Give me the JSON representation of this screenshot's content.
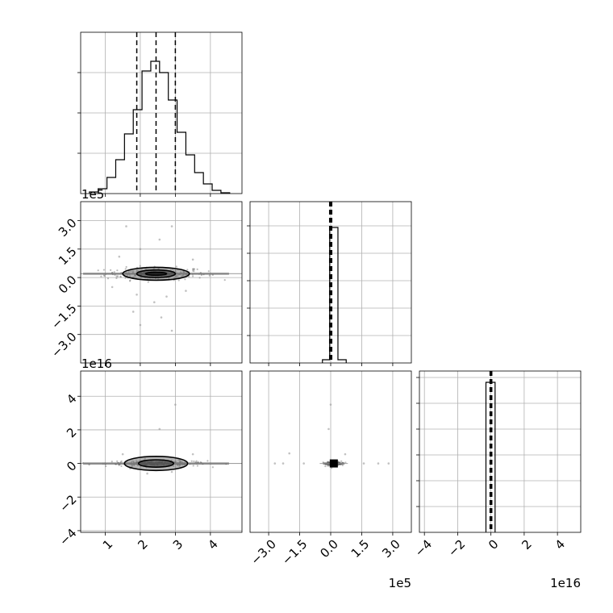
{
  "chart_data": {
    "type": "corner",
    "grid": true,
    "quantile_line_style": "dashed",
    "panels": [
      {
        "id": "hist-0",
        "type": "histogram",
        "x_range": [
          0.3,
          4.9
        ],
        "y_range": [
          0,
          1.0
        ],
        "y_ticks": [
          0.25,
          0.5,
          0.75
        ],
        "x_ticks": [
          1,
          2,
          3,
          4
        ],
        "bins": [
          {
            "x0": 0.55,
            "x1": 0.8,
            "y": 0.01
          },
          {
            "x0": 0.8,
            "x1": 1.05,
            "y": 0.03
          },
          {
            "x0": 1.05,
            "x1": 1.3,
            "y": 0.1
          },
          {
            "x0": 1.3,
            "x1": 1.55,
            "y": 0.21
          },
          {
            "x0": 1.55,
            "x1": 1.8,
            "y": 0.37
          },
          {
            "x0": 1.8,
            "x1": 2.05,
            "y": 0.52
          },
          {
            "x0": 2.05,
            "x1": 2.3,
            "y": 0.76
          },
          {
            "x0": 2.3,
            "x1": 2.55,
            "y": 0.82
          },
          {
            "x0": 2.55,
            "x1": 2.8,
            "y": 0.75
          },
          {
            "x0": 2.8,
            "x1": 3.05,
            "y": 0.58
          },
          {
            "x0": 3.05,
            "x1": 3.3,
            "y": 0.38
          },
          {
            "x0": 3.3,
            "x1": 3.55,
            "y": 0.24
          },
          {
            "x0": 3.55,
            "x1": 3.8,
            "y": 0.13
          },
          {
            "x0": 3.8,
            "x1": 4.05,
            "y": 0.06
          },
          {
            "x0": 4.05,
            "x1": 4.3,
            "y": 0.02
          },
          {
            "x0": 4.3,
            "x1": 4.55,
            "y": 0.005
          }
        ],
        "quantiles": [
          1.9,
          2.45,
          3.0
        ]
      },
      {
        "id": "scatter-1-0",
        "type": "density-scatter",
        "x_range": [
          0.3,
          4.9
        ],
        "y_range": [
          -4.5,
          4.0
        ],
        "x_ticks": [
          1,
          2,
          3,
          4
        ],
        "y_ticks": [
          -3.0,
          -1.5,
          0.0,
          1.5,
          3.0
        ],
        "y_tick_labels": [
          "−3.0",
          "−1.5",
          "0.0",
          "1.5",
          "3.0"
        ],
        "y_offset_text": "1e5",
        "center": [
          2.45,
          0.2
        ],
        "spread": [
          0.8,
          0.15
        ],
        "points": [
          [
            1.6,
            2.7
          ],
          [
            2.9,
            2.7
          ],
          [
            2.55,
            2.0
          ],
          [
            2.0,
            1.5
          ],
          [
            1.4,
            1.1
          ],
          [
            3.5,
            0.95
          ],
          [
            1.9,
            -0.9
          ],
          [
            2.4,
            -1.3
          ],
          [
            1.8,
            -1.8
          ],
          [
            2.6,
            -2.1
          ],
          [
            2.0,
            -2.5
          ],
          [
            2.9,
            -2.8
          ],
          [
            2.75,
            -1.0
          ],
          [
            3.3,
            -0.7
          ],
          [
            1.2,
            -0.5
          ]
        ],
        "contours": [
          [
            0.95,
            0.34
          ],
          [
            0.55,
            0.2
          ],
          [
            0.3,
            0.08
          ]
        ]
      },
      {
        "id": "hist-1",
        "type": "histogram",
        "x_range": [
          -3.9,
          3.9
        ],
        "y_range": [
          0,
          1.0
        ],
        "y_ticks": [
          0.17,
          0.34,
          0.51,
          0.68,
          0.85
        ],
        "x_ticks": [
          -3.0,
          -1.5,
          0.0,
          1.5,
          3.0
        ],
        "bins": [
          {
            "x0": -0.4,
            "x1": -0.05,
            "y": 0.02
          },
          {
            "x0": -0.05,
            "x1": 0.35,
            "y": 0.84
          },
          {
            "x0": 0.35,
            "x1": 0.75,
            "y": 0.02
          }
        ],
        "quantiles": [
          -0.05,
          0.0,
          0.05
        ]
      },
      {
        "id": "scatter-2-0",
        "type": "density-scatter",
        "x_range": [
          0.3,
          4.9
        ],
        "y_range": [
          -4.1,
          5.5
        ],
        "x_ticks": [
          1,
          2,
          3,
          4
        ],
        "x_tick_labels": [
          "1",
          "2",
          "3",
          "4"
        ],
        "y_ticks": [
          -4,
          -2,
          0,
          2,
          4
        ],
        "y_tick_labels": [
          "−4",
          "−2",
          "0",
          "2",
          "4"
        ],
        "y_offset_text": "1e16",
        "center": [
          2.45,
          0.0
        ],
        "spread": [
          0.8,
          0.08
        ],
        "points": [
          [
            3.0,
            3.5
          ],
          [
            2.55,
            2.05
          ],
          [
            1.5,
            0.55
          ],
          [
            3.5,
            0.55
          ],
          [
            2.2,
            -0.6
          ],
          [
            2.9,
            -0.5
          ]
        ],
        "contours": [
          [
            0.9,
            0.42
          ],
          [
            0.5,
            0.22
          ]
        ]
      },
      {
        "id": "scatter-2-1",
        "type": "density-scatter",
        "x_range": [
          -3.9,
          3.9
        ],
        "y_range": [
          -4.1,
          5.5
        ],
        "x_ticks": [
          -3.0,
          -1.5,
          0.0,
          1.5,
          3.0
        ],
        "x_tick_labels": [
          "−3.0",
          "−1.5",
          "0.0",
          "1.5",
          "3.0"
        ],
        "x_offset_text": "1e5",
        "center": [
          0.15,
          0.0
        ],
        "spread": [
          0.2,
          0.06
        ],
        "points": [
          [
            0.0,
            3.5
          ],
          [
            -0.1,
            2.05
          ],
          [
            -2.0,
            0.6
          ],
          [
            0.7,
            0.55
          ],
          [
            -2.7,
            0.0
          ],
          [
            -2.3,
            0.0
          ],
          [
            -1.3,
            0.0
          ],
          [
            1.6,
            0.0
          ],
          [
            2.3,
            0.0
          ],
          [
            2.8,
            0.0
          ]
        ],
        "square_marker": [
          0.15,
          0.0
        ]
      },
      {
        "id": "hist-2",
        "type": "histogram",
        "x_range": [
          -4.3,
          5.4
        ],
        "y_range": [
          0,
          1.0
        ],
        "y_ticks": [
          0.16,
          0.32,
          0.48,
          0.64,
          0.8,
          0.96
        ],
        "x_ticks": [
          -4,
          -2,
          0,
          2,
          4
        ],
        "x_tick_labels": [
          "−4",
          "−2",
          "0",
          "2",
          "4"
        ],
        "x_offset_text": "1e16",
        "bins": [
          {
            "x0": -0.3,
            "x1": 0.25,
            "y": 0.93
          }
        ],
        "quantiles": [
          -0.05,
          0.0,
          0.05
        ]
      }
    ]
  }
}
